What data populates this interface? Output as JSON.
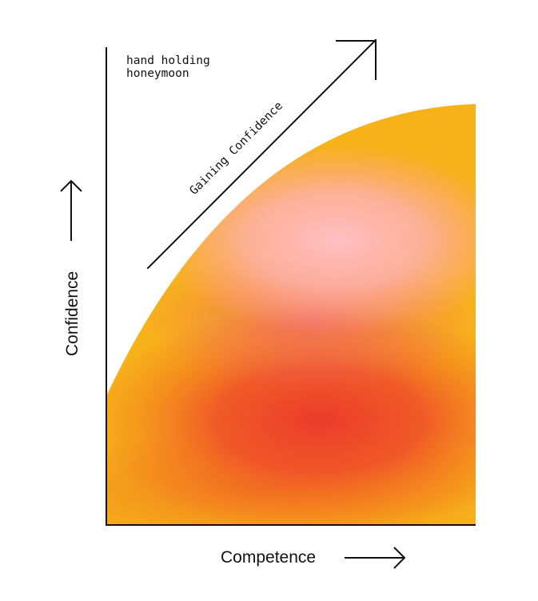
{
  "annotation": {
    "line1": "hand holding",
    "line2": "honeymoon"
  },
  "arrow_label": "Gaining Confidence",
  "y_axis_label": "Confidence",
  "x_axis_label": "Competence",
  "colors": {
    "outer": "#f7b21a",
    "mid": "#f36b1f",
    "core": "#ec3b2a",
    "highlight": "#ffb9bd",
    "ink": "#111111"
  }
}
